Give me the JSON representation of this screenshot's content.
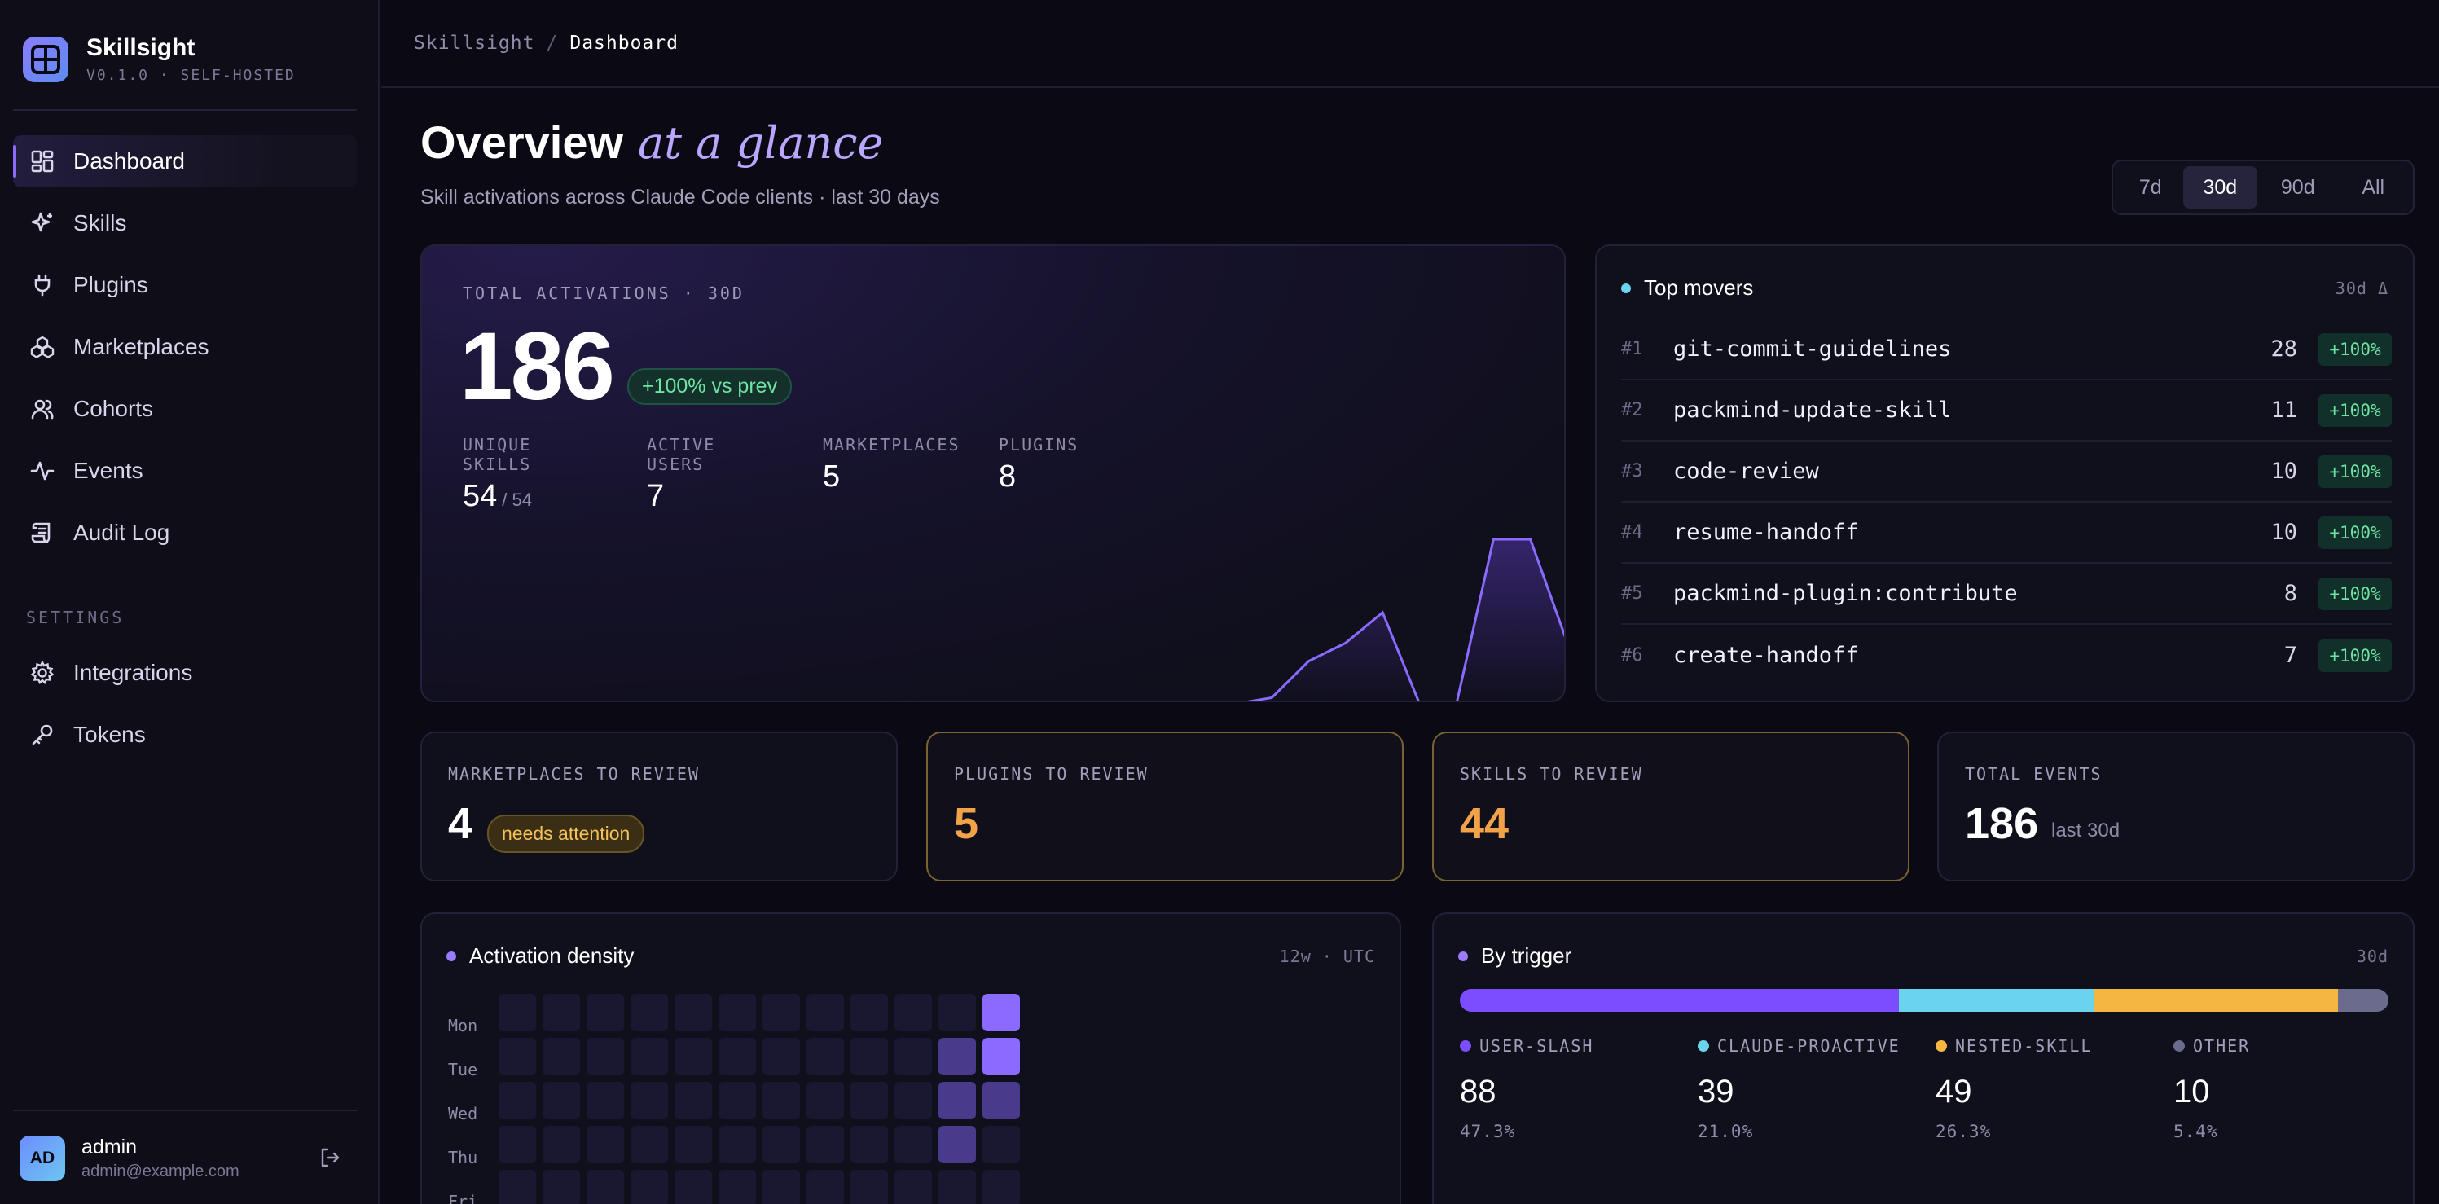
{
  "brand": {
    "name": "Skillsight",
    "version": "V0.1.0 · SELF-HOSTED"
  },
  "nav": [
    {
      "label": "Dashboard",
      "icon": "grid-icon",
      "active": true
    },
    {
      "label": "Skills",
      "icon": "sparkle-icon"
    },
    {
      "label": "Plugins",
      "icon": "plug-icon"
    },
    {
      "label": "Marketplaces",
      "icon": "boxes-icon"
    },
    {
      "label": "Cohorts",
      "icon": "users-icon"
    },
    {
      "label": "Events",
      "icon": "activity-icon"
    },
    {
      "label": "Audit Log",
      "icon": "scroll-icon"
    }
  ],
  "settings": {
    "title": "SETTINGS",
    "items": [
      {
        "label": "Integrations",
        "icon": "gear-icon"
      },
      {
        "label": "Tokens",
        "icon": "key-icon"
      }
    ]
  },
  "user": {
    "initials": "AD",
    "name": "admin",
    "email": "admin@example.com"
  },
  "breadcrumb": {
    "root": "Skillsight",
    "sep": "/",
    "current": "Dashboard"
  },
  "header": {
    "title": "Overview",
    "accent": "at a glance",
    "subtitle": "Skill activations across Claude Code clients · last 30 days"
  },
  "range": {
    "options": [
      "7d",
      "30d",
      "90d",
      "All"
    ],
    "selected": "30d"
  },
  "hero": {
    "label": "TOTAL ACTIVATIONS · 30D",
    "value": "186",
    "delta": "+100% vs prev",
    "stats": [
      {
        "label": "UNIQUE SKILLS",
        "value": "54",
        "suffix": "/ 54"
      },
      {
        "label": "ACTIVE USERS",
        "value": "7",
        "suffix": ""
      },
      {
        "label": "MARKETPLACES",
        "value": "5",
        "suffix": ""
      },
      {
        "label": "PLUGINS",
        "value": "8",
        "suffix": ""
      }
    ],
    "sparkline": [
      0,
      0,
      0,
      0,
      0,
      0,
      0,
      0,
      0,
      0,
      0,
      0,
      0,
      0,
      0,
      0,
      0,
      0,
      0,
      0,
      0,
      0,
      0,
      1,
      7,
      10,
      15,
      0,
      0,
      27,
      27,
      10
    ]
  },
  "movers": {
    "title": "Top movers",
    "meta": "30d Δ",
    "items": [
      {
        "rank": "#1",
        "name": "git-commit-guidelines",
        "count": "28",
        "delta": "+100%"
      },
      {
        "rank": "#2",
        "name": "packmind-update-skill",
        "count": "11",
        "delta": "+100%"
      },
      {
        "rank": "#3",
        "name": "code-review",
        "count": "10",
        "delta": "+100%"
      },
      {
        "rank": "#4",
        "name": "resume-handoff",
        "count": "10",
        "delta": "+100%"
      },
      {
        "rank": "#5",
        "name": "packmind-plugin:contribute",
        "count": "8",
        "delta": "+100%"
      },
      {
        "rank": "#6",
        "name": "create-handoff",
        "count": "7",
        "delta": "+100%"
      }
    ]
  },
  "review": [
    {
      "label": "MARKETPLACES TO REVIEW",
      "value": "4",
      "pill": "needs attention"
    },
    {
      "label": "PLUGINS TO REVIEW",
      "value": "5"
    },
    {
      "label": "SKILLS TO REVIEW",
      "value": "44"
    },
    {
      "label": "TOTAL EVENTS",
      "value": "186",
      "sub": "last 30d"
    }
  ],
  "density": {
    "title": "Activation density",
    "meta": "12w · UTC",
    "days": [
      "Mon",
      "Tue",
      "Wed",
      "Thu",
      "Fri"
    ],
    "weeks": 12,
    "cells": [
      [
        0,
        0,
        0,
        0,
        0,
        0,
        0,
        0,
        0,
        0,
        0,
        4
      ],
      [
        0,
        0,
        0,
        0,
        0,
        0,
        0,
        0,
        0,
        0,
        2,
        4
      ],
      [
        0,
        0,
        0,
        0,
        0,
        0,
        0,
        0,
        0,
        0,
        2,
        2
      ],
      [
        0,
        0,
        0,
        0,
        0,
        0,
        0,
        0,
        0,
        0,
        2,
        0
      ],
      [
        0,
        0,
        0,
        0,
        0,
        0,
        0,
        0,
        0,
        0,
        0,
        0
      ]
    ]
  },
  "trigger": {
    "title": "By trigger",
    "meta": "30d",
    "items": [
      {
        "label": "USER-SLASH",
        "value": "88",
        "pct": "47.3%",
        "share": 47.3,
        "color": "#7c4dff"
      },
      {
        "label": "CLAUDE-PROACTIVE",
        "value": "39",
        "pct": "21.0%",
        "share": 21.0,
        "color": "#6ad4ee"
      },
      {
        "label": "NESTED-SKILL",
        "value": "49",
        "pct": "26.3%",
        "share": 26.3,
        "color": "#f5b642"
      },
      {
        "label": "OTHER",
        "value": "10",
        "pct": "5.4%",
        "share": 5.4,
        "color": "#6b6b8e"
      }
    ]
  }
}
